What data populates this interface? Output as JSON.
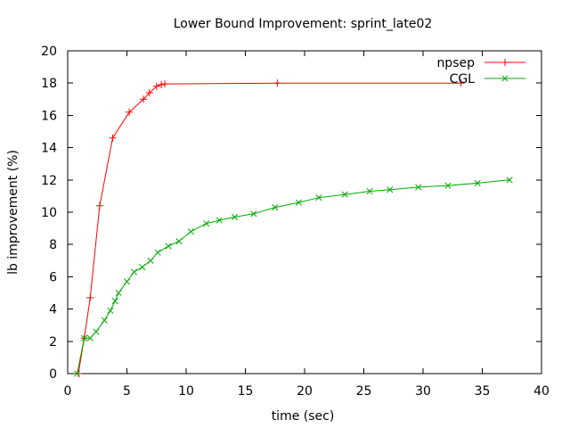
{
  "chart_data": {
    "type": "line",
    "title": "Lower Bound Improvement: sprint_late02",
    "xlabel": "time (sec)",
    "ylabel": "lb improvement (%)",
    "xlim": [
      0,
      40
    ],
    "ylim": [
      0,
      20
    ],
    "xticks": [
      0,
      5,
      10,
      15,
      20,
      25,
      30,
      35,
      40
    ],
    "yticks": [
      0,
      2,
      4,
      6,
      8,
      10,
      12,
      14,
      16,
      18,
      20
    ],
    "grid": false,
    "legend_position": "top-right",
    "series": [
      {
        "name": "npsep",
        "color": "#ff0000",
        "marker": "plus",
        "x": [
          0.9,
          1.4,
          1.9,
          2.7,
          3.8,
          5.2,
          6.4,
          6.9,
          7.5,
          7.9,
          8.2,
          17.7,
          33.2
        ],
        "y": [
          0.0,
          2.2,
          4.7,
          10.4,
          14.6,
          16.2,
          17.0,
          17.4,
          17.8,
          17.9,
          17.95,
          18.0,
          18.0
        ]
      },
      {
        "name": "CGL",
        "color": "#00aa00",
        "marker": "cross",
        "x": [
          0.8,
          1.4,
          1.9,
          2.4,
          3.1,
          3.6,
          4.0,
          4.3,
          5.0,
          5.6,
          6.3,
          7.0,
          7.6,
          8.5,
          9.4,
          10.4,
          11.7,
          12.8,
          14.1,
          15.7,
          17.5,
          19.5,
          21.2,
          23.4,
          25.5,
          27.2,
          29.6,
          32.1,
          34.6,
          37.3
        ],
        "y": [
          0.0,
          2.2,
          2.2,
          2.6,
          3.3,
          3.9,
          4.5,
          5.0,
          5.7,
          6.3,
          6.6,
          7.0,
          7.5,
          7.9,
          8.2,
          8.8,
          9.3,
          9.5,
          9.7,
          9.9,
          10.3,
          10.6,
          10.9,
          11.1,
          11.3,
          11.4,
          11.55,
          11.65,
          11.8,
          12.0
        ]
      }
    ]
  }
}
